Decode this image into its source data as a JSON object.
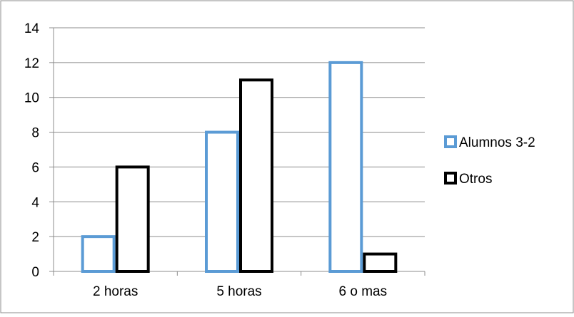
{
  "chart_data": {
    "type": "bar",
    "categories": [
      "2 horas",
      "5 horas",
      "6 o mas"
    ],
    "series": [
      {
        "name": "Alumnos 3-2",
        "values": [
          2,
          8,
          12
        ],
        "color": "#5b9bd5"
      },
      {
        "name": "Otros",
        "values": [
          6,
          11,
          1
        ],
        "color": "#000000"
      }
    ],
    "ylim": [
      0,
      14
    ],
    "yticks": [
      0,
      2,
      4,
      6,
      8,
      10,
      12,
      14
    ],
    "grid": true,
    "legend_position": "right",
    "bar_fill": "#ffffff"
  }
}
